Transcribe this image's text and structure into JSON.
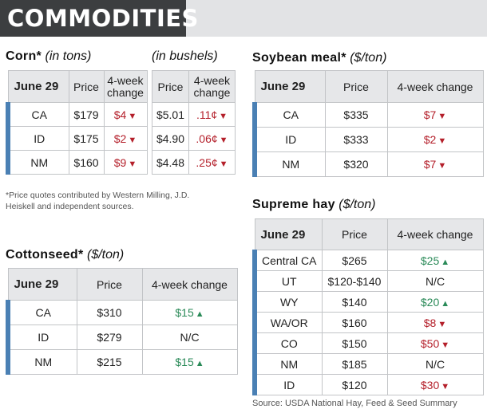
{
  "banner": {
    "title": "COMMODITIES"
  },
  "colors": {
    "down": "#b41f2a",
    "up": "#2a8a58",
    "accent_bar": "#4a80b4",
    "banner_bg": "#3c3e40"
  },
  "corn": {
    "title": "Corn*",
    "unit_tons": "(in tons)",
    "unit_bushels": "(in bushels)",
    "header": {
      "date": "June 29",
      "price": "Price",
      "change": "4-week change",
      "price2": "Price",
      "change2": "4-week change"
    },
    "rows": [
      {
        "loc": "CA",
        "price": "$179",
        "change": "$4",
        "dir": "down",
        "price2": "$5.01",
        "change2": ".11¢",
        "dir2": "down"
      },
      {
        "loc": "ID",
        "price": "$175",
        "change": "$2",
        "dir": "down",
        "price2": "$4.90",
        "change2": ".06¢",
        "dir2": "down"
      },
      {
        "loc": "NM",
        "price": "$160",
        "change": "$9",
        "dir": "down",
        "price2": "$4.48",
        "change2": ".25¢",
        "dir2": "down"
      }
    ],
    "footnote": "*Price quotes contributed by Western Milling, J.D. Heiskell and independent sources."
  },
  "soybean": {
    "title": "Soybean meal*",
    "unit": "($/ton)",
    "header": {
      "date": "June 29",
      "price": "Price",
      "change": "4-week change"
    },
    "rows": [
      {
        "loc": "CA",
        "price": "$335",
        "change": "$7",
        "dir": "down"
      },
      {
        "loc": "ID",
        "price": "$333",
        "change": "$2",
        "dir": "down"
      },
      {
        "loc": "NM",
        "price": "$320",
        "change": "$7",
        "dir": "down"
      }
    ]
  },
  "cottonseed": {
    "title": "Cottonseed*",
    "unit": "($/ton)",
    "header": {
      "date": "June 29",
      "price": "Price",
      "change": "4-week change"
    },
    "rows": [
      {
        "loc": "CA",
        "price": "$310",
        "change": "$15",
        "dir": "up"
      },
      {
        "loc": "ID",
        "price": "$279",
        "change": "N/C",
        "dir": "none"
      },
      {
        "loc": "NM",
        "price": "$215",
        "change": "$15",
        "dir": "up"
      }
    ]
  },
  "hay": {
    "title": "Supreme hay",
    "unit": "($/ton)",
    "header": {
      "date": "June 29",
      "price": "Price",
      "change": "4-week change"
    },
    "rows": [
      {
        "loc": "Central CA",
        "price": "$265",
        "change": "$25",
        "dir": "up"
      },
      {
        "loc": "UT",
        "price": "$120-$140",
        "change": "N/C",
        "dir": "none"
      },
      {
        "loc": "WY",
        "price": "$140",
        "change": "$20",
        "dir": "up"
      },
      {
        "loc": "WA/OR",
        "price": "$160",
        "change": "$8",
        "dir": "down"
      },
      {
        "loc": "CO",
        "price": "$150",
        "change": "$50",
        "dir": "down"
      },
      {
        "loc": "NM",
        "price": "$185",
        "change": "N/C",
        "dir": "none"
      },
      {
        "loc": "ID",
        "price": "$120",
        "change": "$30",
        "dir": "down"
      }
    ],
    "source": "Source: USDA National Hay, Feed & Seed Summary"
  }
}
